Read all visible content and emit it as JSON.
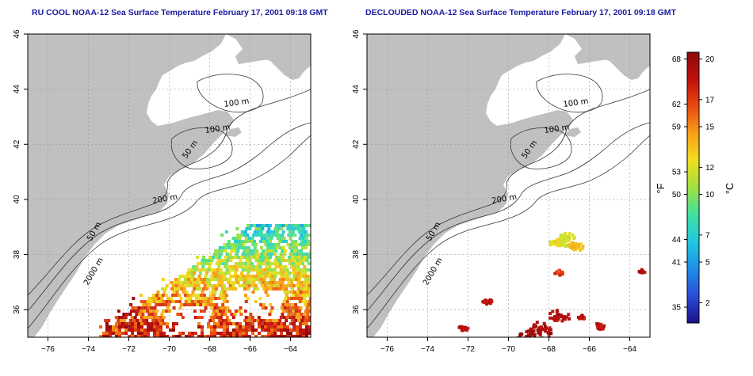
{
  "panels": [
    {
      "title": "RU COOL NOAA-12 Sea Surface Temperature February 17, 2001 09:18 GMT",
      "mode": "raw"
    },
    {
      "title": "DECLOUDED NOAA-12 Sea Surface Temperature February 17, 2001 09:18 GMT",
      "mode": "declouded"
    }
  ],
  "map": {
    "lon_range": [
      -77,
      -63
    ],
    "lat_range": [
      35,
      46
    ],
    "x_ticks": [
      -76,
      -74,
      -72,
      -70,
      -68,
      -66,
      -64
    ],
    "y_ticks": [
      36,
      38,
      40,
      42,
      44,
      46
    ],
    "grid": "dotted",
    "land_color": "#c0c0c0",
    "contour_labels": [
      "100 m",
      "100 m",
      "50 m",
      "200 m",
      "50 m",
      "2000 m"
    ]
  },
  "colorbar": {
    "fahrenheit_ticks": [
      "68",
      "62",
      "59",
      "53",
      "50",
      "44",
      "41",
      "35"
    ],
    "celsius_ticks": [
      "20",
      "17",
      "15",
      "12",
      "10",
      "7",
      "5",
      "2"
    ],
    "fahrenheit_unit": "°F",
    "celsius_unit": "°C",
    "range_c": [
      0.5,
      20.5
    ],
    "colors": [
      "#1a0f8a",
      "#2b4bd8",
      "#1f8fe8",
      "#20c8e0",
      "#40e0a0",
      "#a0e040",
      "#f0e020",
      "#f8a018",
      "#e84a10",
      "#c01010",
      "#8c0a0a"
    ]
  }
}
